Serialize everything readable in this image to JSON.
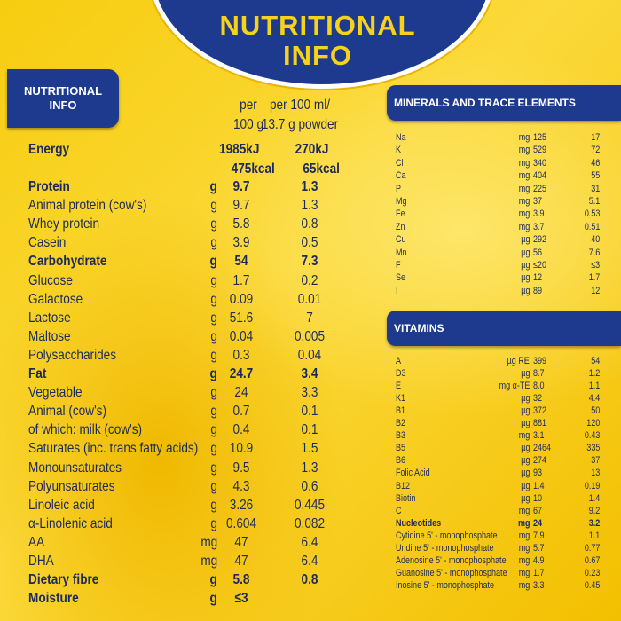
{
  "header": {
    "title": "NUTRITIONAL INFO"
  },
  "main": {
    "label": "NUTRITIONAL INFO",
    "columns": [
      "per 100 g",
      "per 100 ml/ 13.7 g powder"
    ],
    "energy": {
      "name": "Energy",
      "per_100g": [
        "1985kJ",
        "475kcal"
      ],
      "per_100ml": [
        "270kJ",
        "65kcal"
      ]
    },
    "rows": [
      {
        "name": "Protein",
        "unit": "g",
        "per_100g": "9.7",
        "per_100ml": "1.3",
        "bold": true
      },
      {
        "name": "Animal protein (cow's)",
        "unit": "g",
        "per_100g": "9.7",
        "per_100ml": "1.3",
        "bold": false
      },
      {
        "name": "Whey protein",
        "unit": "g",
        "per_100g": "5.8",
        "per_100ml": "0.8",
        "bold": false
      },
      {
        "name": "Casein",
        "unit": "g",
        "per_100g": "3.9",
        "per_100ml": "0.5",
        "bold": false
      },
      {
        "name": "Carbohydrate",
        "unit": "g",
        "per_100g": "54",
        "per_100ml": "7.3",
        "bold": true
      },
      {
        "name": "Glucose",
        "unit": "g",
        "per_100g": "1.7",
        "per_100ml": "0.2",
        "bold": false
      },
      {
        "name": "Galactose",
        "unit": "g",
        "per_100g": "0.09",
        "per_100ml": "0.01",
        "bold": false
      },
      {
        "name": "Lactose",
        "unit": "g",
        "per_100g": "51.6",
        "per_100ml": "7",
        "bold": false
      },
      {
        "name": "Maltose",
        "unit": "g",
        "per_100g": "0.04",
        "per_100ml": "0.005",
        "bold": false
      },
      {
        "name": "Polysaccharides",
        "unit": "g",
        "per_100g": "0.3",
        "per_100ml": "0.04",
        "bold": false
      },
      {
        "name": "Fat",
        "unit": "g",
        "per_100g": "24.7",
        "per_100ml": "3.4",
        "bold": true
      },
      {
        "name": "Vegetable",
        "unit": "g",
        "per_100g": "24",
        "per_100ml": "3.3",
        "bold": false
      },
      {
        "name": "Animal (cow's)",
        "unit": "g",
        "per_100g": "0.7",
        "per_100ml": "0.1",
        "bold": false
      },
      {
        "name": "of which: milk (cow's)",
        "unit": "g",
        "per_100g": "0.4",
        "per_100ml": "0.1",
        "bold": false
      },
      {
        "name": "Saturates (inc. trans fatty acids)",
        "unit": "g",
        "per_100g": "10.9",
        "per_100ml": "1.5",
        "bold": false
      },
      {
        "name": "Monounsaturates",
        "unit": "g",
        "per_100g": "9.5",
        "per_100ml": "1.3",
        "bold": false
      },
      {
        "name": "Polyunsaturates",
        "unit": "g",
        "per_100g": "4.3",
        "per_100ml": "0.6",
        "bold": false
      },
      {
        "name": "Linoleic acid",
        "unit": "g",
        "per_100g": "3.26",
        "per_100ml": "0.445",
        "bold": false
      },
      {
        "name": "α-Linolenic acid",
        "unit": "g",
        "per_100g": "0.604",
        "per_100ml": "0.082",
        "bold": false
      },
      {
        "name": "AA",
        "unit": "mg",
        "per_100g": "47",
        "per_100ml": "6.4",
        "bold": false
      },
      {
        "name": "DHA",
        "unit": "mg",
        "per_100g": "47",
        "per_100ml": "6.4",
        "bold": false
      },
      {
        "name": "Dietary fibre",
        "unit": "g",
        "per_100g": "5.8",
        "per_100ml": "0.8",
        "bold": true
      },
      {
        "name": "Moisture",
        "unit": "g",
        "per_100g": "≤3",
        "bold": true
      }
    ]
  },
  "minerals": {
    "title": "MINERALS AND TRACE ELEMENTS",
    "rows": [
      {
        "name": "Na",
        "unit": "mg",
        "per_100g": "125",
        "per_100ml": "17"
      },
      {
        "name": "K",
        "unit": "mg",
        "per_100g": "529",
        "per_100ml": "72"
      },
      {
        "name": "Cl",
        "unit": "mg",
        "per_100g": "340",
        "per_100ml": "46"
      },
      {
        "name": "Ca",
        "unit": "mg",
        "per_100g": "404",
        "per_100ml": "55"
      },
      {
        "name": "P",
        "unit": "mg",
        "per_100g": "225",
        "per_100ml": "31"
      },
      {
        "name": "Mg",
        "unit": "mg",
        "per_100g": "37",
        "per_100ml": "5.1"
      },
      {
        "name": "Fe",
        "unit": "mg",
        "per_100g": "3.9",
        "per_100ml": "0.53"
      },
      {
        "name": "Zn",
        "unit": "mg",
        "per_100g": "3.7",
        "per_100ml": "0.51"
      },
      {
        "name": "Cu",
        "unit": "µg",
        "per_100g": "292",
        "per_100ml": "40"
      },
      {
        "name": "Mn",
        "unit": "µg",
        "per_100g": "56",
        "per_100ml": "7.6"
      },
      {
        "name": "F",
        "unit": "µg",
        "per_100g": "≤20",
        "per_100ml": "≤3"
      },
      {
        "name": "Se",
        "unit": "µg",
        "per_100g": "12",
        "per_100ml": "1.7"
      },
      {
        "name": "I",
        "unit": "µg",
        "per_100g": "89",
        "per_100ml": "12"
      }
    ]
  },
  "vitamins": {
    "title": "VITAMINS",
    "rows": [
      {
        "name": "A",
        "unit": "µg RE",
        "per_100g": "399",
        "per_100ml": "54",
        "bold": false
      },
      {
        "name": "D3",
        "unit": "µg",
        "per_100g": "8.7",
        "per_100ml": "1.2",
        "bold": false
      },
      {
        "name": "E",
        "unit": "mg α-TE",
        "per_100g": "8.0",
        "per_100ml": "1.1",
        "bold": false
      },
      {
        "name": "K1",
        "unit": "µg",
        "per_100g": "32",
        "per_100ml": "4.4",
        "bold": false
      },
      {
        "name": "B1",
        "unit": "µg",
        "per_100g": "372",
        "per_100ml": "50",
        "bold": false
      },
      {
        "name": "B2",
        "unit": "µg",
        "per_100g": "881",
        "per_100ml": "120",
        "bold": false
      },
      {
        "name": "B3",
        "unit": "mg",
        "per_100g": "3.1",
        "per_100ml": "0.43",
        "bold": false
      },
      {
        "name": "B5",
        "unit": "µg",
        "per_100g": "2464",
        "per_100ml": "335",
        "bold": false
      },
      {
        "name": "B6",
        "unit": "µg",
        "per_100g": "274",
        "per_100ml": "37",
        "bold": false
      },
      {
        "name": "Folic Acid",
        "unit": "µg",
        "per_100g": "93",
        "per_100ml": "13",
        "bold": false
      },
      {
        "name": "B12",
        "unit": "µg",
        "per_100g": "1.4",
        "per_100ml": "0.19",
        "bold": false
      },
      {
        "name": "Biotin",
        "unit": "µg",
        "per_100g": "10",
        "per_100ml": "1.4",
        "bold": false
      },
      {
        "name": "C",
        "unit": "mg",
        "per_100g": "67",
        "per_100ml": "9.2",
        "bold": false
      },
      {
        "name": "Nucleotides",
        "unit": "mg",
        "per_100g": "24",
        "per_100ml": "3.2",
        "bold": true
      },
      {
        "name": "Cytidine 5' - monophosphate",
        "unit": "mg",
        "per_100g": "7.9",
        "per_100ml": "1.1",
        "bold": false
      },
      {
        "name": "Uridine 5' - monophosphate",
        "unit": "mg",
        "per_100g": "5.7",
        "per_100ml": "0.77",
        "bold": false
      },
      {
        "name": "Adenosine 5' - monophosphate",
        "unit": "mg",
        "per_100g": "4.9",
        "per_100ml": "0.67",
        "bold": false
      },
      {
        "name": "Guanosine 5' - monophosphate",
        "unit": "mg",
        "per_100g": "1.7",
        "per_100ml": "0.23",
        "bold": false
      },
      {
        "name": "Inosine 5' - monophosphate",
        "unit": "mg",
        "per_100g": "3.3",
        "per_100ml": "0.45",
        "bold": false
      }
    ]
  }
}
